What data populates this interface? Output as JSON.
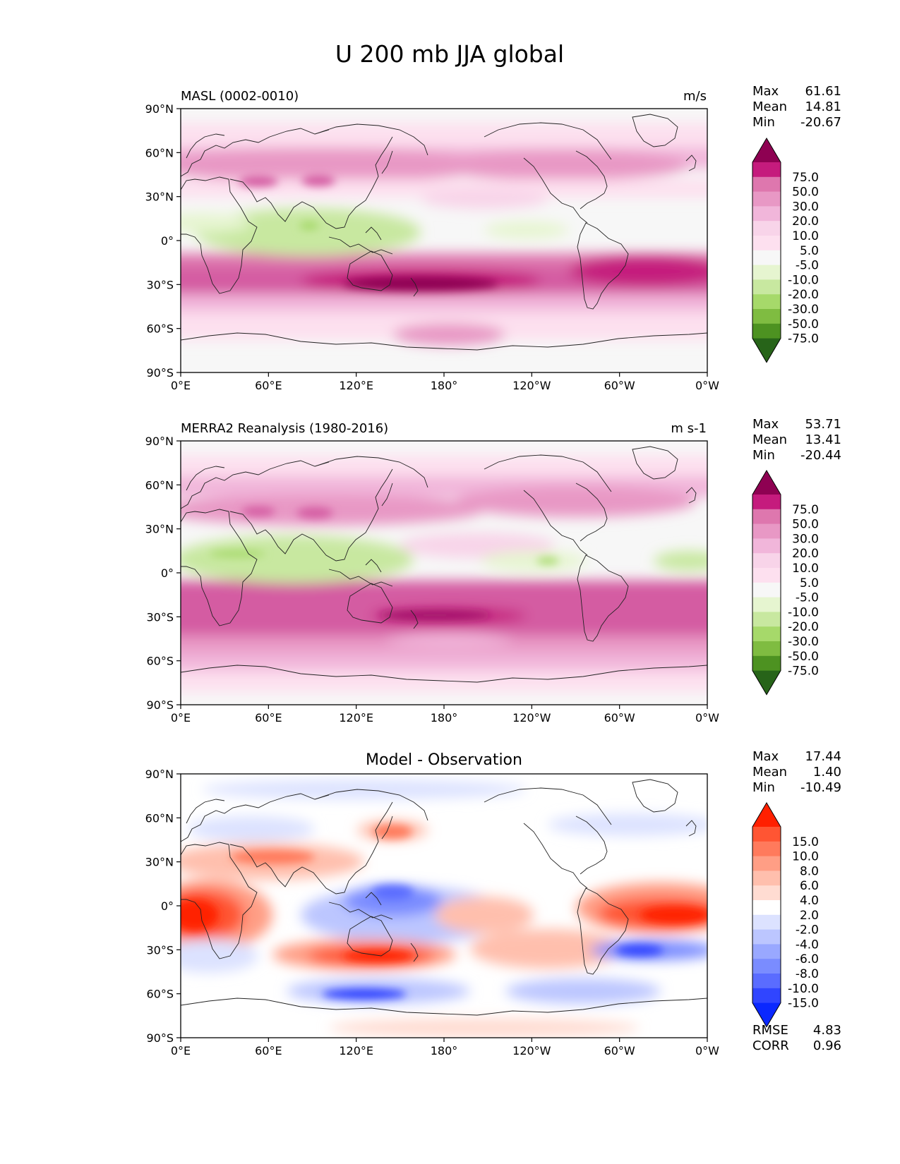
{
  "title": "U 200 mb JJA global",
  "x_ticks": [
    "0°E",
    "60°E",
    "120°E",
    "180°",
    "120°W",
    "60°W",
    "0°W"
  ],
  "y_ticks": [
    "90°N",
    "60°N",
    "30°N",
    "0°",
    "30°S",
    "60°S",
    "90°S"
  ],
  "panels": [
    {
      "name": "model",
      "left_title": "MASL (0002-0010)",
      "center_title": "",
      "right_title": "m/s",
      "stats": [
        {
          "label": "Max",
          "value": "61.61"
        },
        {
          "label": "Mean",
          "value": "14.81"
        },
        {
          "label": "Min",
          "value": "-20.67"
        }
      ],
      "colorbar": {
        "labels": [
          "75.0",
          "50.0",
          "30.0",
          "20.0",
          "10.0",
          "5.0",
          "-5.0",
          "-10.0",
          "-20.0",
          "-30.0",
          "-50.0",
          "-75.0"
        ],
        "colors": [
          "#8e0152",
          "#c51b7d",
          "#de77ae",
          "#e898c5",
          "#f1b6da",
          "#f8d4e9",
          "#fde0ef",
          "#f7f7f7",
          "#e6f5d0",
          "#c8e8a0",
          "#a6d96a",
          "#7fbc41",
          "#4d9221",
          "#276419"
        ]
      },
      "extra_stats": []
    },
    {
      "name": "obs",
      "left_title": "MERRA2 Reanalysis (1980-2016)",
      "center_title": "",
      "right_title": "m s-1",
      "stats": [
        {
          "label": "Max",
          "value": "53.71"
        },
        {
          "label": "Mean",
          "value": "13.41"
        },
        {
          "label": "Min",
          "value": "-20.44"
        }
      ],
      "colorbar": {
        "labels": [
          "75.0",
          "50.0",
          "30.0",
          "20.0",
          "10.0",
          "5.0",
          "-5.0",
          "-10.0",
          "-20.0",
          "-30.0",
          "-50.0",
          "-75.0"
        ],
        "colors": [
          "#8e0152",
          "#c51b7d",
          "#de77ae",
          "#e898c5",
          "#f1b6da",
          "#f8d4e9",
          "#fde0ef",
          "#f7f7f7",
          "#e6f5d0",
          "#c8e8a0",
          "#a6d96a",
          "#7fbc41",
          "#4d9221",
          "#276419"
        ]
      },
      "extra_stats": []
    },
    {
      "name": "diff",
      "left_title": "",
      "center_title": "Model - Observation",
      "right_title": "",
      "stats": [
        {
          "label": "Max",
          "value": "17.44"
        },
        {
          "label": "Mean",
          "value": "1.40"
        },
        {
          "label": "Min",
          "value": "-10.49"
        }
      ],
      "colorbar": {
        "labels": [
          "15.0",
          "10.0",
          "8.0",
          "6.0",
          "4.0",
          "2.0",
          "-2.0",
          "-4.0",
          "-6.0",
          "-8.0",
          "-10.0",
          "-15.0"
        ],
        "colors": [
          "#ff2000",
          "#ff5533",
          "#ff7a5c",
          "#ff9e85",
          "#ffbfad",
          "#ffdcd2",
          "#ffffff",
          "#dce2ff",
          "#bcc6ff",
          "#99a8ff",
          "#7a8cff",
          "#5a6cff",
          "#3045ff",
          "#0a28ff"
        ]
      },
      "extra_stats": [
        {
          "label": "RMSE",
          "value": "4.83"
        },
        {
          "label": "CORR",
          "value": "0.96"
        }
      ]
    }
  ]
}
